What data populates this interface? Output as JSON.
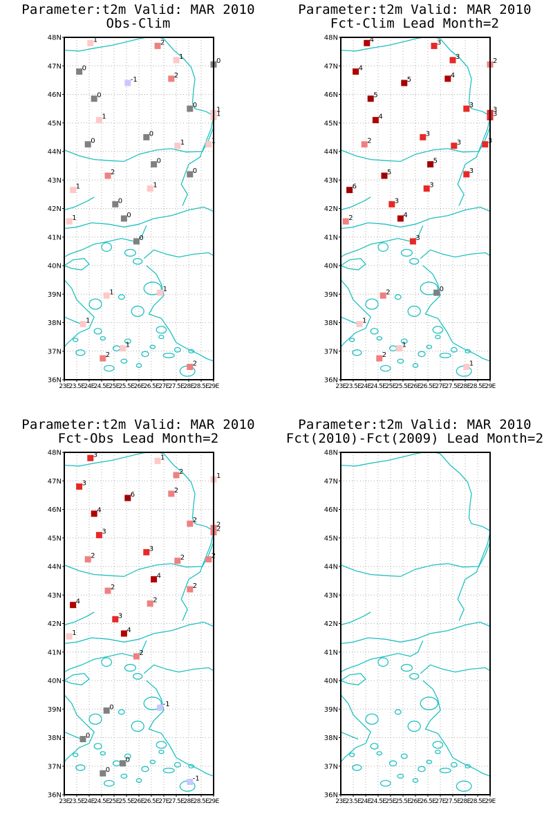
{
  "colors": {
    "coast": "#20c0c0",
    "grid": "#a8a8a8",
    "scale": {
      "-1": "#c8c8ff",
      "0": "#808080",
      "1": "#ffc8c8",
      "2": "#f08080",
      "3": "#e82828",
      "4": "#b00000",
      "5": "#a00000",
      "6": "#a00000"
    }
  },
  "axes": {
    "lat_ticks": [
      "36N",
      "37N",
      "38N",
      "39N",
      "40N",
      "41N",
      "42N",
      "43N",
      "44N",
      "45N",
      "46N",
      "47N",
      "48N"
    ],
    "lon_ticks": [
      "23E",
      "23.5E",
      "24E",
      "24.5E",
      "25E",
      "25.5E",
      "26E",
      "26.5E",
      "27E",
      "27.5E",
      "28E",
      "28.5E",
      "29E"
    ],
    "lon_range": [
      23,
      29
    ],
    "lat_range": [
      36,
      48
    ]
  },
  "panels": [
    {
      "title_line1": "Parameter:t2m Valid: MAR 2010",
      "title_line2": "Obs-Clim",
      "stations": [
        {
          "lon": 24.05,
          "lat": 47.8,
          "v": 1
        },
        {
          "lon": 26.75,
          "lat": 47.7,
          "v": 2
        },
        {
          "lon": 27.5,
          "lat": 47.2,
          "v": 1
        },
        {
          "lon": 29.0,
          "lat": 47.05,
          "v": 0
        },
        {
          "lon": 23.6,
          "lat": 46.8,
          "v": 0
        },
        {
          "lon": 25.55,
          "lat": 46.4,
          "v": -1
        },
        {
          "lon": 27.3,
          "lat": 46.55,
          "v": 2
        },
        {
          "lon": 24.2,
          "lat": 45.85,
          "v": 0
        },
        {
          "lon": 28.05,
          "lat": 45.5,
          "v": 0
        },
        {
          "lon": 29.0,
          "lat": 45.35,
          "v": 1
        },
        {
          "lon": 24.4,
          "lat": 45.1,
          "v": 1
        },
        {
          "lon": 29.0,
          "lat": 45.2,
          "v": 1
        },
        {
          "lon": 23.95,
          "lat": 44.25,
          "v": 0
        },
        {
          "lon": 26.3,
          "lat": 44.5,
          "v": 0
        },
        {
          "lon": 27.55,
          "lat": 44.2,
          "v": 1
        },
        {
          "lon": 28.8,
          "lat": 44.25,
          "v": 1
        },
        {
          "lon": 26.6,
          "lat": 43.55,
          "v": 0
        },
        {
          "lon": 24.75,
          "lat": 43.15,
          "v": 2
        },
        {
          "lon": 28.05,
          "lat": 43.2,
          "v": 0
        },
        {
          "lon": 23.35,
          "lat": 42.65,
          "v": 1
        },
        {
          "lon": 26.45,
          "lat": 42.7,
          "v": 1
        },
        {
          "lon": 25.05,
          "lat": 42.15,
          "v": 0
        },
        {
          "lon": 25.4,
          "lat": 41.65,
          "v": 0
        },
        {
          "lon": 23.2,
          "lat": 41.55,
          "v": 1
        },
        {
          "lon": 25.9,
          "lat": 40.85,
          "v": 0
        },
        {
          "lon": 24.7,
          "lat": 38.95,
          "v": 1
        },
        {
          "lon": 26.85,
          "lat": 39.05,
          "v": 1
        },
        {
          "lon": 23.75,
          "lat": 37.95,
          "v": 1
        },
        {
          "lon": 25.35,
          "lat": 37.1,
          "v": 1
        },
        {
          "lon": 24.55,
          "lat": 36.75,
          "v": 2
        },
        {
          "lon": 28.05,
          "lat": 36.45,
          "v": 2
        }
      ]
    },
    {
      "title_line1": "Parameter:t2m Valid: MAR 2010",
      "title_line2": "Fct-Clim Lead Month=2",
      "stations": [
        {
          "lon": 24.05,
          "lat": 47.8,
          "v": 4
        },
        {
          "lon": 26.75,
          "lat": 47.7,
          "v": 3
        },
        {
          "lon": 27.5,
          "lat": 47.2,
          "v": 3
        },
        {
          "lon": 29.0,
          "lat": 47.05,
          "v": 2
        },
        {
          "lon": 23.6,
          "lat": 46.8,
          "v": 4
        },
        {
          "lon": 25.55,
          "lat": 46.4,
          "v": 5
        },
        {
          "lon": 27.3,
          "lat": 46.55,
          "v": 4
        },
        {
          "lon": 24.2,
          "lat": 45.85,
          "v": 5
        },
        {
          "lon": 28.05,
          "lat": 45.5,
          "v": 3
        },
        {
          "lon": 29.0,
          "lat": 45.35,
          "v": 3
        },
        {
          "lon": 24.4,
          "lat": 45.1,
          "v": 4
        },
        {
          "lon": 29.0,
          "lat": 45.2,
          "v": 3
        },
        {
          "lon": 23.95,
          "lat": 44.25,
          "v": 2
        },
        {
          "lon": 26.3,
          "lat": 44.5,
          "v": 3
        },
        {
          "lon": 27.55,
          "lat": 44.2,
          "v": 3
        },
        {
          "lon": 28.8,
          "lat": 44.25,
          "v": 3
        },
        {
          "lon": 26.6,
          "lat": 43.55,
          "v": 5
        },
        {
          "lon": 24.75,
          "lat": 43.15,
          "v": 5
        },
        {
          "lon": 28.05,
          "lat": 43.2,
          "v": 3
        },
        {
          "lon": 23.35,
          "lat": 42.65,
          "v": 6
        },
        {
          "lon": 26.45,
          "lat": 42.7,
          "v": 3
        },
        {
          "lon": 25.05,
          "lat": 42.15,
          "v": 3
        },
        {
          "lon": 25.4,
          "lat": 41.65,
          "v": 4
        },
        {
          "lon": 23.2,
          "lat": 41.55,
          "v": 2
        },
        {
          "lon": 25.9,
          "lat": 40.85,
          "v": 3
        },
        {
          "lon": 24.7,
          "lat": 38.95,
          "v": 2
        },
        {
          "lon": 26.85,
          "lat": 39.05,
          "v": 0
        },
        {
          "lon": 23.75,
          "lat": 37.95,
          "v": 1
        },
        {
          "lon": 25.35,
          "lat": 37.1,
          "v": 1
        },
        {
          "lon": 24.55,
          "lat": 36.75,
          "v": 2
        },
        {
          "lon": 28.05,
          "lat": 36.45,
          "v": 1
        }
      ]
    },
    {
      "title_line1": "Parameter:t2m Valid: MAR 2010",
      "title_line2": "Fct-Obs Lead Month=2",
      "stations": [
        {
          "lon": 24.05,
          "lat": 47.8,
          "v": 3
        },
        {
          "lon": 26.75,
          "lat": 47.7,
          "v": 1
        },
        {
          "lon": 27.5,
          "lat": 47.2,
          "v": 2
        },
        {
          "lon": 29.0,
          "lat": 47.05,
          "v": 1
        },
        {
          "lon": 23.6,
          "lat": 46.8,
          "v": 3
        },
        {
          "lon": 25.55,
          "lat": 46.4,
          "v": 6
        },
        {
          "lon": 27.3,
          "lat": 46.55,
          "v": 2
        },
        {
          "lon": 24.2,
          "lat": 45.85,
          "v": 4
        },
        {
          "lon": 28.05,
          "lat": 45.5,
          "v": 2
        },
        {
          "lon": 29.0,
          "lat": 45.35,
          "v": 2
        },
        {
          "lon": 24.4,
          "lat": 45.1,
          "v": 3
        },
        {
          "lon": 29.0,
          "lat": 45.2,
          "v": 2
        },
        {
          "lon": 23.95,
          "lat": 44.25,
          "v": 2
        },
        {
          "lon": 26.3,
          "lat": 44.5,
          "v": 3
        },
        {
          "lon": 27.55,
          "lat": 44.2,
          "v": 2
        },
        {
          "lon": 28.8,
          "lat": 44.25,
          "v": 2
        },
        {
          "lon": 26.6,
          "lat": 43.55,
          "v": 4
        },
        {
          "lon": 24.75,
          "lat": 43.15,
          "v": 2
        },
        {
          "lon": 28.05,
          "lat": 43.2,
          "v": 2
        },
        {
          "lon": 23.35,
          "lat": 42.65,
          "v": 4
        },
        {
          "lon": 26.45,
          "lat": 42.7,
          "v": 2
        },
        {
          "lon": 25.05,
          "lat": 42.15,
          "v": 3
        },
        {
          "lon": 25.4,
          "lat": 41.65,
          "v": 4
        },
        {
          "lon": 23.2,
          "lat": 41.55,
          "v": 1
        },
        {
          "lon": 25.9,
          "lat": 40.85,
          "v": 2
        },
        {
          "lon": 24.7,
          "lat": 38.95,
          "v": 0
        },
        {
          "lon": 26.85,
          "lat": 39.05,
          "v": -1
        },
        {
          "lon": 23.75,
          "lat": 37.95,
          "v": 0
        },
        {
          "lon": 25.35,
          "lat": 37.1,
          "v": 0
        },
        {
          "lon": 24.55,
          "lat": 36.75,
          "v": 0
        },
        {
          "lon": 28.05,
          "lat": 36.45,
          "v": -1
        }
      ]
    },
    {
      "title_line1": "Parameter:t2m Valid: MAR 2010",
      "title_line2": "Fct(2010)-Fct(2009) Lead Month=2",
      "stations": []
    }
  ]
}
